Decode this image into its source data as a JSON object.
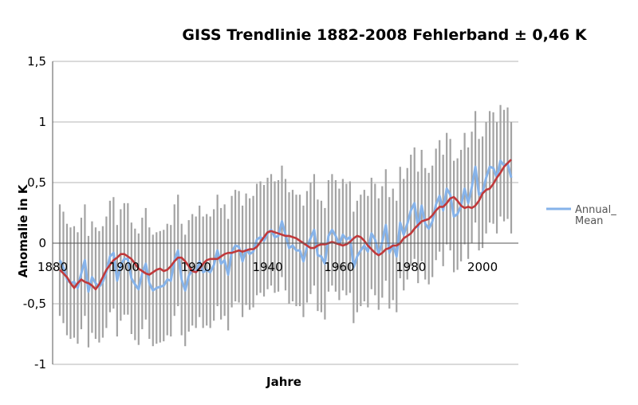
{
  "chart_data": {
    "type": "line",
    "title": "GISS Trendlinie 1882-2008 Fehlerband ± 0,46 K",
    "xlabel": "Jahre",
    "ylabel": "Anomalie in K",
    "xlim": [
      1880,
      2010
    ],
    "ylim": [
      -1,
      1.5
    ],
    "x_ticks": [
      "1880",
      "1900",
      "1920",
      "1940",
      "1960",
      "1980",
      "2000"
    ],
    "y_ticks": [
      "-1",
      "-0,5",
      "0",
      "0,5",
      "1",
      "1,5"
    ],
    "grid": true,
    "legend_position": "right",
    "legend": [
      {
        "label": "Annual_ Mean",
        "color": "#86b3ea"
      }
    ],
    "error_band": 0.46,
    "years": [
      1882,
      1883,
      1884,
      1885,
      1886,
      1887,
      1888,
      1889,
      1890,
      1891,
      1892,
      1893,
      1894,
      1895,
      1896,
      1897,
      1898,
      1899,
      1900,
      1901,
      1902,
      1903,
      1904,
      1905,
      1906,
      1907,
      1908,
      1909,
      1910,
      1911,
      1912,
      1913,
      1914,
      1915,
      1916,
      1917,
      1918,
      1919,
      1920,
      1921,
      1922,
      1923,
      1924,
      1925,
      1926,
      1927,
      1928,
      1929,
      1930,
      1931,
      1932,
      1933,
      1934,
      1935,
      1936,
      1937,
      1938,
      1939,
      1940,
      1941,
      1942,
      1943,
      1944,
      1945,
      1946,
      1947,
      1948,
      1949,
      1950,
      1951,
      1952,
      1953,
      1954,
      1955,
      1956,
      1957,
      1958,
      1959,
      1960,
      1961,
      1962,
      1963,
      1964,
      1965,
      1966,
      1967,
      1968,
      1969,
      1970,
      1971,
      1972,
      1973,
      1974,
      1975,
      1976,
      1977,
      1978,
      1979,
      1980,
      1981,
      1982,
      1983,
      1984,
      1985,
      1986,
      1987,
      1988,
      1989,
      1990,
      1991,
      1992,
      1993,
      1994,
      1995,
      1996,
      1997,
      1998,
      1999,
      2000,
      2001,
      2002,
      2003,
      2004,
      2005,
      2006,
      2007,
      2008
    ],
    "series": [
      {
        "name": "Annual_ Mean",
        "color": "#86b3ea",
        "values": [
          -0.14,
          -0.2,
          -0.3,
          -0.33,
          -0.32,
          -0.37,
          -0.25,
          -0.14,
          -0.4,
          -0.28,
          -0.33,
          -0.36,
          -0.32,
          -0.24,
          -0.11,
          -0.08,
          -0.31,
          -0.18,
          -0.13,
          -0.13,
          -0.29,
          -0.34,
          -0.38,
          -0.25,
          -0.17,
          -0.33,
          -0.39,
          -0.37,
          -0.36,
          -0.35,
          -0.3,
          -0.31,
          -0.14,
          -0.06,
          -0.3,
          -0.39,
          -0.27,
          -0.22,
          -0.24,
          -0.15,
          -0.24,
          -0.22,
          -0.24,
          -0.18,
          -0.06,
          -0.17,
          -0.14,
          -0.26,
          -0.07,
          -0.02,
          -0.03,
          -0.15,
          -0.05,
          -0.09,
          -0.07,
          0.03,
          0.05,
          0.02,
          0.08,
          0.11,
          0.05,
          0.06,
          0.18,
          0.07,
          -0.04,
          -0.02,
          -0.06,
          -0.06,
          -0.15,
          -0.03,
          0.04,
          0.11,
          -0.1,
          -0.11,
          -0.17,
          0.06,
          0.11,
          0.06,
          -0.01,
          0.07,
          0.03,
          0.05,
          -0.2,
          -0.11,
          -0.06,
          -0.02,
          -0.07,
          0.08,
          0.03,
          -0.09,
          0.01,
          0.15,
          -0.08,
          -0.01,
          -0.11,
          0.17,
          0.07,
          0.16,
          0.27,
          0.33,
          0.13,
          0.31,
          0.16,
          0.12,
          0.18,
          0.32,
          0.39,
          0.27,
          0.45,
          0.4,
          0.22,
          0.24,
          0.31,
          0.45,
          0.33,
          0.46,
          0.63,
          0.4,
          0.42,
          0.54,
          0.63,
          0.62,
          0.54,
          0.68,
          0.64,
          0.66,
          0.54
        ]
      },
      {
        "name": "",
        "color": "#c0393b",
        "values": [
          -0.22,
          -0.25,
          -0.28,
          -0.33,
          -0.37,
          -0.33,
          -0.3,
          -0.32,
          -0.33,
          -0.35,
          -0.38,
          -0.34,
          -0.28,
          -0.22,
          -0.18,
          -0.14,
          -0.12,
          -0.09,
          -0.09,
          -0.11,
          -0.13,
          -0.17,
          -0.21,
          -0.23,
          -0.25,
          -0.26,
          -0.24,
          -0.22,
          -0.21,
          -0.23,
          -0.22,
          -0.19,
          -0.15,
          -0.12,
          -0.12,
          -0.15,
          -0.19,
          -0.23,
          -0.24,
          -0.21,
          -0.17,
          -0.14,
          -0.13,
          -0.13,
          -0.13,
          -0.11,
          -0.09,
          -0.08,
          -0.08,
          -0.07,
          -0.06,
          -0.07,
          -0.06,
          -0.05,
          -0.05,
          -0.03,
          0.01,
          0.05,
          0.09,
          0.1,
          0.09,
          0.08,
          0.07,
          0.06,
          0.06,
          0.05,
          0.04,
          0.02,
          0.0,
          -0.02,
          -0.04,
          -0.04,
          -0.02,
          -0.01,
          -0.01,
          0.0,
          0.01,
          0.0,
          -0.01,
          -0.02,
          -0.01,
          0.01,
          0.04,
          0.06,
          0.05,
          0.02,
          -0.02,
          -0.05,
          -0.08,
          -0.1,
          -0.08,
          -0.05,
          -0.04,
          -0.02,
          -0.02,
          0.0,
          0.04,
          0.06,
          0.08,
          0.12,
          0.15,
          0.18,
          0.19,
          0.2,
          0.23,
          0.27,
          0.3,
          0.3,
          0.33,
          0.37,
          0.38,
          0.35,
          0.31,
          0.29,
          0.3,
          0.29,
          0.31,
          0.35,
          0.41,
          0.44,
          0.45,
          0.49,
          0.54,
          0.58,
          0.63,
          0.66,
          0.69
        ]
      }
    ]
  }
}
